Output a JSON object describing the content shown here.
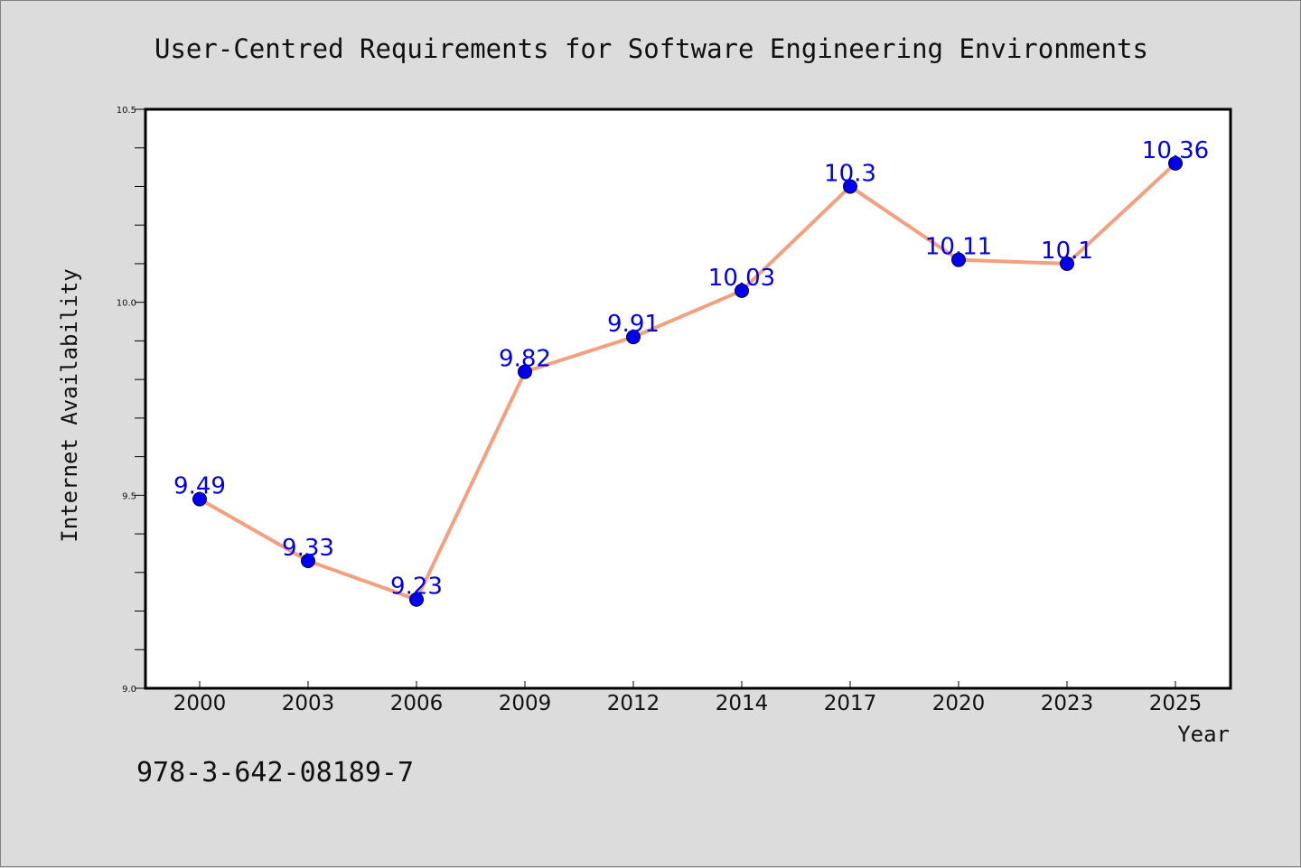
{
  "chart_data": {
    "type": "line",
    "title": "User-Centred Requirements for Software Engineering Environments",
    "xlabel": "Year",
    "ylabel": "Internet Availability",
    "categories": [
      "2000",
      "2003",
      "2006",
      "2009",
      "2012",
      "2014",
      "2017",
      "2020",
      "2023",
      "2025"
    ],
    "series": [
      {
        "values": [
          9.49,
          9.33,
          9.23,
          9.82,
          9.91,
          10.03,
          10.3,
          10.11,
          10.1,
          10.36
        ],
        "data_labels": [
          "9.49",
          "9.33",
          "9.23",
          "9.82",
          "9.91",
          "10.03",
          "10.3",
          "10.11",
          "10.1",
          "10.36"
        ]
      }
    ],
    "ylim": [
      9.0,
      10.5
    ],
    "y_ticks": [
      "9.0",
      "9.5",
      "10.0",
      "10.5"
    ],
    "grid": false,
    "colors": {
      "line": "#f4a07e",
      "marker": "#0000ee",
      "data_label": "#0000ee"
    }
  },
  "footer": {
    "isbn": "978-3-642-08189-7"
  }
}
